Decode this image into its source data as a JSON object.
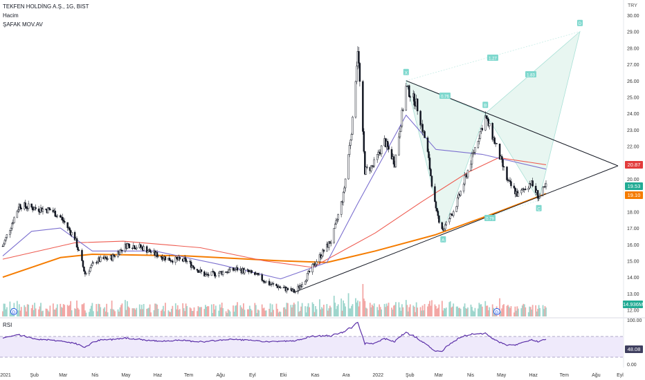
{
  "header": {
    "title": "TEKFEN HOLDİNG A.Ş., 1G, BIST",
    "line2": "Hacim",
    "line3": "ŞAFAK  MOV.AV"
  },
  "currency": "TRY",
  "price_axis": {
    "ticks": [
      "30.00",
      "29.00",
      "28.00",
      "27.00",
      "26.00",
      "25.00",
      "24.00",
      "23.00",
      "22.00",
      "21.00",
      "20.00",
      "19.00",
      "18.00",
      "17.00",
      "16.00",
      "15.00",
      "14.00",
      "13.00",
      "12.00"
    ]
  },
  "rsi_axis": {
    "title": "RSI",
    "ticks": [
      "100.00",
      "0.00"
    ]
  },
  "time_axis": [
    "2021",
    "Şub",
    "Mar",
    "Nis",
    "May",
    "Haz",
    "Tem",
    "Ağu",
    "Eyl",
    "Eki",
    "Kas",
    "Ara",
    "2022",
    "Şub",
    "Mar",
    "Nis",
    "May",
    "Haz",
    "Tem",
    "Ağu",
    "Eyl"
  ],
  "price_tags": [
    {
      "id": "ma-red",
      "text": "20.87",
      "color": "#e23b3b"
    },
    {
      "id": "last",
      "text": "19.53",
      "color": "#22ab94"
    },
    {
      "id": "ma-orange",
      "text": "19.10",
      "color": "#f57c00"
    },
    {
      "id": "volume",
      "text": "14.936M",
      "color": "#22ab94"
    },
    {
      "id": "rsi",
      "text": "48.08",
      "color": "#3f3f5f"
    }
  ],
  "pattern": {
    "points": [
      {
        "label": "X",
        "date": "2022-01-31",
        "price": 26.0
      },
      {
        "label": "A",
        "date": "2022-03-08",
        "price": 16.8
      },
      {
        "label": "B",
        "date": "2022-04-18",
        "price": 24.0
      },
      {
        "label": "C",
        "date": "2022-06-09",
        "price": 18.7
      },
      {
        "label": "D",
        "date": "2022-07-20",
        "price": 29.0
      }
    ],
    "ratios": [
      "0.76",
      "0.79",
      "1.27",
      "1.83"
    ]
  },
  "triangle": {
    "upper": [
      {
        "date": "2022-01-31",
        "price": 26.0
      },
      {
        "date": "2022-07-25",
        "price": 20.8
      }
    ],
    "lower": [
      {
        "date": "2021-10-15",
        "price": 13.1
      },
      {
        "date": "2022-07-25",
        "price": 20.8
      }
    ]
  },
  "chart_data": {
    "type": "candlestick",
    "interval": "1D",
    "currency": "TRY",
    "ylim": [
      12.0,
      30.3
    ],
    "price_series": [
      {
        "date": "2021-01-04",
        "close": 15.9
      },
      {
        "date": "2021-01-20",
        "close": 18.4
      },
      {
        "date": "2021-02-05",
        "close": 18.2
      },
      {
        "date": "2021-02-20",
        "close": 18.1
      },
      {
        "date": "2021-03-02",
        "close": 17.6
      },
      {
        "date": "2021-03-15",
        "close": 16.4
      },
      {
        "date": "2021-03-25",
        "close": 14.2
      },
      {
        "date": "2021-04-05",
        "close": 15.0
      },
      {
        "date": "2021-04-20",
        "close": 15.2
      },
      {
        "date": "2021-05-05",
        "close": 16.0
      },
      {
        "date": "2021-05-20",
        "close": 15.8
      },
      {
        "date": "2021-06-01",
        "close": 15.4
      },
      {
        "date": "2021-06-15",
        "close": 15.1
      },
      {
        "date": "2021-07-01",
        "close": 15.0
      },
      {
        "date": "2021-07-20",
        "close": 14.1
      },
      {
        "date": "2021-08-05",
        "close": 14.3
      },
      {
        "date": "2021-08-20",
        "close": 14.5
      },
      {
        "date": "2021-09-05",
        "close": 14.2
      },
      {
        "date": "2021-09-20",
        "close": 13.6
      },
      {
        "date": "2021-10-05",
        "close": 13.3
      },
      {
        "date": "2021-10-15",
        "close": 13.1
      },
      {
        "date": "2021-10-25",
        "close": 13.9
      },
      {
        "date": "2021-11-05",
        "close": 15.0
      },
      {
        "date": "2021-11-20",
        "close": 16.3
      },
      {
        "date": "2021-12-01",
        "close": 19.0
      },
      {
        "date": "2021-12-10",
        "close": 23.5
      },
      {
        "date": "2021-12-15",
        "close": 28.0
      },
      {
        "date": "2021-12-22",
        "close": 20.5
      },
      {
        "date": "2021-12-30",
        "close": 20.8
      },
      {
        "date": "2022-01-10",
        "close": 22.3
      },
      {
        "date": "2022-01-20",
        "close": 21.0
      },
      {
        "date": "2022-01-31",
        "close": 25.6
      },
      {
        "date": "2022-02-10",
        "close": 24.6
      },
      {
        "date": "2022-02-20",
        "close": 22.0
      },
      {
        "date": "2022-03-01",
        "close": 18.0
      },
      {
        "date": "2022-03-08",
        "close": 16.9
      },
      {
        "date": "2022-03-20",
        "close": 18.3
      },
      {
        "date": "2022-04-01",
        "close": 20.5
      },
      {
        "date": "2022-04-10",
        "close": 22.3
      },
      {
        "date": "2022-04-18",
        "close": 23.8
      },
      {
        "date": "2022-04-28",
        "close": 22.1
      },
      {
        "date": "2022-05-10",
        "close": 19.8
      },
      {
        "date": "2022-05-20",
        "close": 19.0
      },
      {
        "date": "2022-06-01",
        "close": 19.8
      },
      {
        "date": "2022-06-09",
        "close": 18.9
      },
      {
        "date": "2022-06-16",
        "close": 19.53
      }
    ],
    "moving_averages": [
      {
        "name": "ŞAFAK  MOV.AV",
        "color": "#f57c00",
        "last": 19.1,
        "points": [
          [
            "2021-01-04",
            14.0
          ],
          [
            "2021-03-01",
            15.2
          ],
          [
            "2021-04-01",
            15.4
          ],
          [
            "2021-07-01",
            15.3
          ],
          [
            "2021-10-01",
            15.0
          ],
          [
            "2021-11-15",
            14.9
          ],
          [
            "2022-01-01",
            15.6
          ],
          [
            "2022-03-01",
            16.6
          ],
          [
            "2022-05-01",
            18.0
          ],
          [
            "2022-06-16",
            19.1
          ]
        ]
      },
      {
        "color": "#ee5a4f",
        "last": 20.87,
        "points": [
          [
            "2021-01-04",
            15.1
          ],
          [
            "2021-03-15",
            16.1
          ],
          [
            "2021-05-01",
            16.2
          ],
          [
            "2021-07-15",
            15.8
          ],
          [
            "2021-09-15",
            15.0
          ],
          [
            "2021-11-01",
            14.6
          ],
          [
            "2022-01-01",
            16.7
          ],
          [
            "2022-02-15",
            18.6
          ],
          [
            "2022-04-01",
            20.4
          ],
          [
            "2022-05-01",
            21.3
          ],
          [
            "2022-06-16",
            20.87
          ]
        ]
      },
      {
        "color": "#7b6fcf",
        "points": [
          [
            "2021-01-04",
            15.3
          ],
          [
            "2021-02-01",
            16.8
          ],
          [
            "2021-03-01",
            17.0
          ],
          [
            "2021-04-01",
            15.6
          ],
          [
            "2021-06-01",
            15.6
          ],
          [
            "2021-08-01",
            14.8
          ],
          [
            "2021-10-01",
            13.9
          ],
          [
            "2021-11-15",
            14.9
          ],
          [
            "2021-12-15",
            18.5
          ],
          [
            "2022-01-31",
            23.9
          ],
          [
            "2022-03-01",
            21.8
          ],
          [
            "2022-04-15",
            21.5
          ],
          [
            "2022-06-16",
            20.6
          ]
        ]
      }
    ],
    "volume_last": "14.936M",
    "rsi": {
      "name": "RSI",
      "last": 48.08,
      "color": "#5b2fa8"
    }
  }
}
